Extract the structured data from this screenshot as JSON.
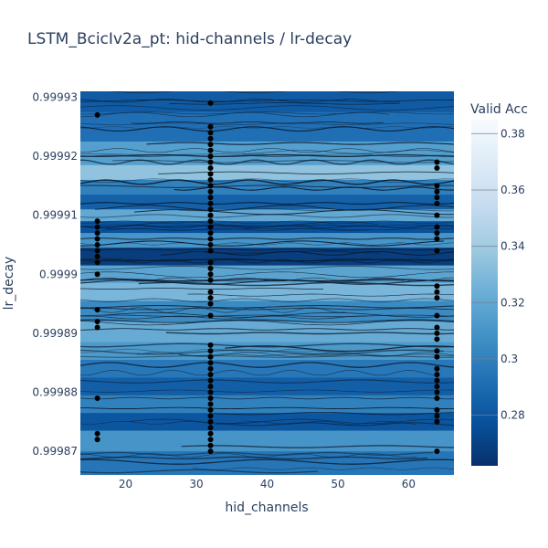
{
  "chart_data": {
    "type": "contour",
    "title": "LSTM_BcicIv2a_pt: hid-channels / lr-decay",
    "xlabel": "hid_channels",
    "ylabel": "lr_decay",
    "xlim": [
      13.6,
      66.4
    ],
    "ylim": [
      0.999866,
      0.999931
    ],
    "x_ticks": [
      20,
      30,
      40,
      50,
      60
    ],
    "x_tick_labels": [
      "20",
      "30",
      "40",
      "50",
      "60"
    ],
    "y_ticks": [
      0.99987,
      0.99988,
      0.99989,
      0.9999,
      0.99991,
      0.99992,
      0.99993
    ],
    "y_tick_labels": [
      "0.99987",
      "0.99988",
      "0.99989",
      "0.9999",
      "0.99991",
      "0.99992",
      "0.99993"
    ],
    "colorbar": {
      "title": "Valid Acc",
      "range": [
        0.262,
        0.385
      ],
      "ticks": [
        0.28,
        0.3,
        0.32,
        0.34,
        0.36,
        0.38
      ],
      "tick_labels": [
        "0.28",
        "0.3",
        "0.32",
        "0.34",
        "0.36",
        "0.38"
      ],
      "colorscale": [
        "#08306b",
        "#08519c",
        "#2171b5",
        "#4292c6",
        "#6baed6",
        "#9ecae1",
        "#c6dbef",
        "#deebf7",
        "#f7fbff"
      ]
    },
    "bands": [
      {
        "y": 0.99993,
        "value": 0.282
      },
      {
        "y": 0.999925,
        "value": 0.292
      },
      {
        "y": 0.99992,
        "value": 0.315
      },
      {
        "y": 0.999917,
        "value": 0.335
      },
      {
        "y": 0.999915,
        "value": 0.3
      },
      {
        "y": 0.999912,
        "value": 0.285
      },
      {
        "y": 0.99991,
        "value": 0.32
      },
      {
        "y": 0.999908,
        "value": 0.278
      },
      {
        "y": 0.999906,
        "value": 0.31
      },
      {
        "y": 0.999903,
        "value": 0.268
      },
      {
        "y": 0.9999,
        "value": 0.318
      },
      {
        "y": 0.999897,
        "value": 0.328
      },
      {
        "y": 0.999894,
        "value": 0.305
      },
      {
        "y": 0.99989,
        "value": 0.322
      },
      {
        "y": 0.999887,
        "value": 0.312
      },
      {
        "y": 0.999884,
        "value": 0.296
      },
      {
        "y": 0.999881,
        "value": 0.284
      },
      {
        "y": 0.999878,
        "value": 0.3
      },
      {
        "y": 0.999875,
        "value": 0.28
      },
      {
        "y": 0.999872,
        "value": 0.31
      },
      {
        "y": 0.999868,
        "value": 0.295
      }
    ],
    "points": [
      {
        "x": 16,
        "y": 0.999927
      },
      {
        "x": 16,
        "y": 0.999909
      },
      {
        "x": 16,
        "y": 0.999908
      },
      {
        "x": 16,
        "y": 0.999907
      },
      {
        "x": 16,
        "y": 0.999906
      },
      {
        "x": 16,
        "y": 0.999905
      },
      {
        "x": 16,
        "y": 0.999904
      },
      {
        "x": 16,
        "y": 0.999903
      },
      {
        "x": 16,
        "y": 0.999902
      },
      {
        "x": 16,
        "y": 0.9999
      },
      {
        "x": 16,
        "y": 0.999894
      },
      {
        "x": 16,
        "y": 0.999892
      },
      {
        "x": 16,
        "y": 0.999891
      },
      {
        "x": 16,
        "y": 0.999879
      },
      {
        "x": 16,
        "y": 0.999873
      },
      {
        "x": 16,
        "y": 0.999872
      },
      {
        "x": 32,
        "y": 0.999929
      },
      {
        "x": 32,
        "y": 0.999925
      },
      {
        "x": 32,
        "y": 0.999924
      },
      {
        "x": 32,
        "y": 0.999923
      },
      {
        "x": 32,
        "y": 0.999922
      },
      {
        "x": 32,
        "y": 0.999921
      },
      {
        "x": 32,
        "y": 0.99992
      },
      {
        "x": 32,
        "y": 0.999919
      },
      {
        "x": 32,
        "y": 0.999918
      },
      {
        "x": 32,
        "y": 0.999917
      },
      {
        "x": 32,
        "y": 0.999916
      },
      {
        "x": 32,
        "y": 0.999915
      },
      {
        "x": 32,
        "y": 0.999914
      },
      {
        "x": 32,
        "y": 0.999913
      },
      {
        "x": 32,
        "y": 0.999912
      },
      {
        "x": 32,
        "y": 0.999911
      },
      {
        "x": 32,
        "y": 0.99991
      },
      {
        "x": 32,
        "y": 0.999909
      },
      {
        "x": 32,
        "y": 0.999908
      },
      {
        "x": 32,
        "y": 0.999907
      },
      {
        "x": 32,
        "y": 0.999906
      },
      {
        "x": 32,
        "y": 0.999905
      },
      {
        "x": 32,
        "y": 0.999904
      },
      {
        "x": 32,
        "y": 0.999902
      },
      {
        "x": 32,
        "y": 0.999901
      },
      {
        "x": 32,
        "y": 0.9999
      },
      {
        "x": 32,
        "y": 0.999899
      },
      {
        "x": 32,
        "y": 0.999897
      },
      {
        "x": 32,
        "y": 0.999896
      },
      {
        "x": 32,
        "y": 0.999895
      },
      {
        "x": 32,
        "y": 0.999893
      },
      {
        "x": 32,
        "y": 0.999888
      },
      {
        "x": 32,
        "y": 0.999887
      },
      {
        "x": 32,
        "y": 0.999886
      },
      {
        "x": 32,
        "y": 0.999885
      },
      {
        "x": 32,
        "y": 0.999884
      },
      {
        "x": 32,
        "y": 0.999883
      },
      {
        "x": 32,
        "y": 0.999882
      },
      {
        "x": 32,
        "y": 0.999881
      },
      {
        "x": 32,
        "y": 0.99988
      },
      {
        "x": 32,
        "y": 0.999879
      },
      {
        "x": 32,
        "y": 0.999878
      },
      {
        "x": 32,
        "y": 0.999877
      },
      {
        "x": 32,
        "y": 0.999876
      },
      {
        "x": 32,
        "y": 0.999875
      },
      {
        "x": 32,
        "y": 0.999874
      },
      {
        "x": 32,
        "y": 0.999873
      },
      {
        "x": 32,
        "y": 0.999872
      },
      {
        "x": 32,
        "y": 0.999871
      },
      {
        "x": 32,
        "y": 0.99987
      },
      {
        "x": 64,
        "y": 0.999919
      },
      {
        "x": 64,
        "y": 0.999918
      },
      {
        "x": 64,
        "y": 0.999915
      },
      {
        "x": 64,
        "y": 0.999914
      },
      {
        "x": 64,
        "y": 0.999913
      },
      {
        "x": 64,
        "y": 0.999912
      },
      {
        "x": 64,
        "y": 0.99991
      },
      {
        "x": 64,
        "y": 0.999908
      },
      {
        "x": 64,
        "y": 0.999907
      },
      {
        "x": 64,
        "y": 0.999906
      },
      {
        "x": 64,
        "y": 0.999904
      },
      {
        "x": 64,
        "y": 0.999898
      },
      {
        "x": 64,
        "y": 0.999897
      },
      {
        "x": 64,
        "y": 0.999896
      },
      {
        "x": 64,
        "y": 0.999893
      },
      {
        "x": 64,
        "y": 0.999891
      },
      {
        "x": 64,
        "y": 0.99989
      },
      {
        "x": 64,
        "y": 0.999889
      },
      {
        "x": 64,
        "y": 0.999887
      },
      {
        "x": 64,
        "y": 0.999886
      },
      {
        "x": 64,
        "y": 0.999884
      },
      {
        "x": 64,
        "y": 0.999883
      },
      {
        "x": 64,
        "y": 0.999882
      },
      {
        "x": 64,
        "y": 0.999881
      },
      {
        "x": 64,
        "y": 0.99988
      },
      {
        "x": 64,
        "y": 0.999879
      },
      {
        "x": 64,
        "y": 0.999877
      },
      {
        "x": 64,
        "y": 0.999876
      },
      {
        "x": 64,
        "y": 0.999875
      },
      {
        "x": 64,
        "y": 0.99987
      }
    ]
  }
}
